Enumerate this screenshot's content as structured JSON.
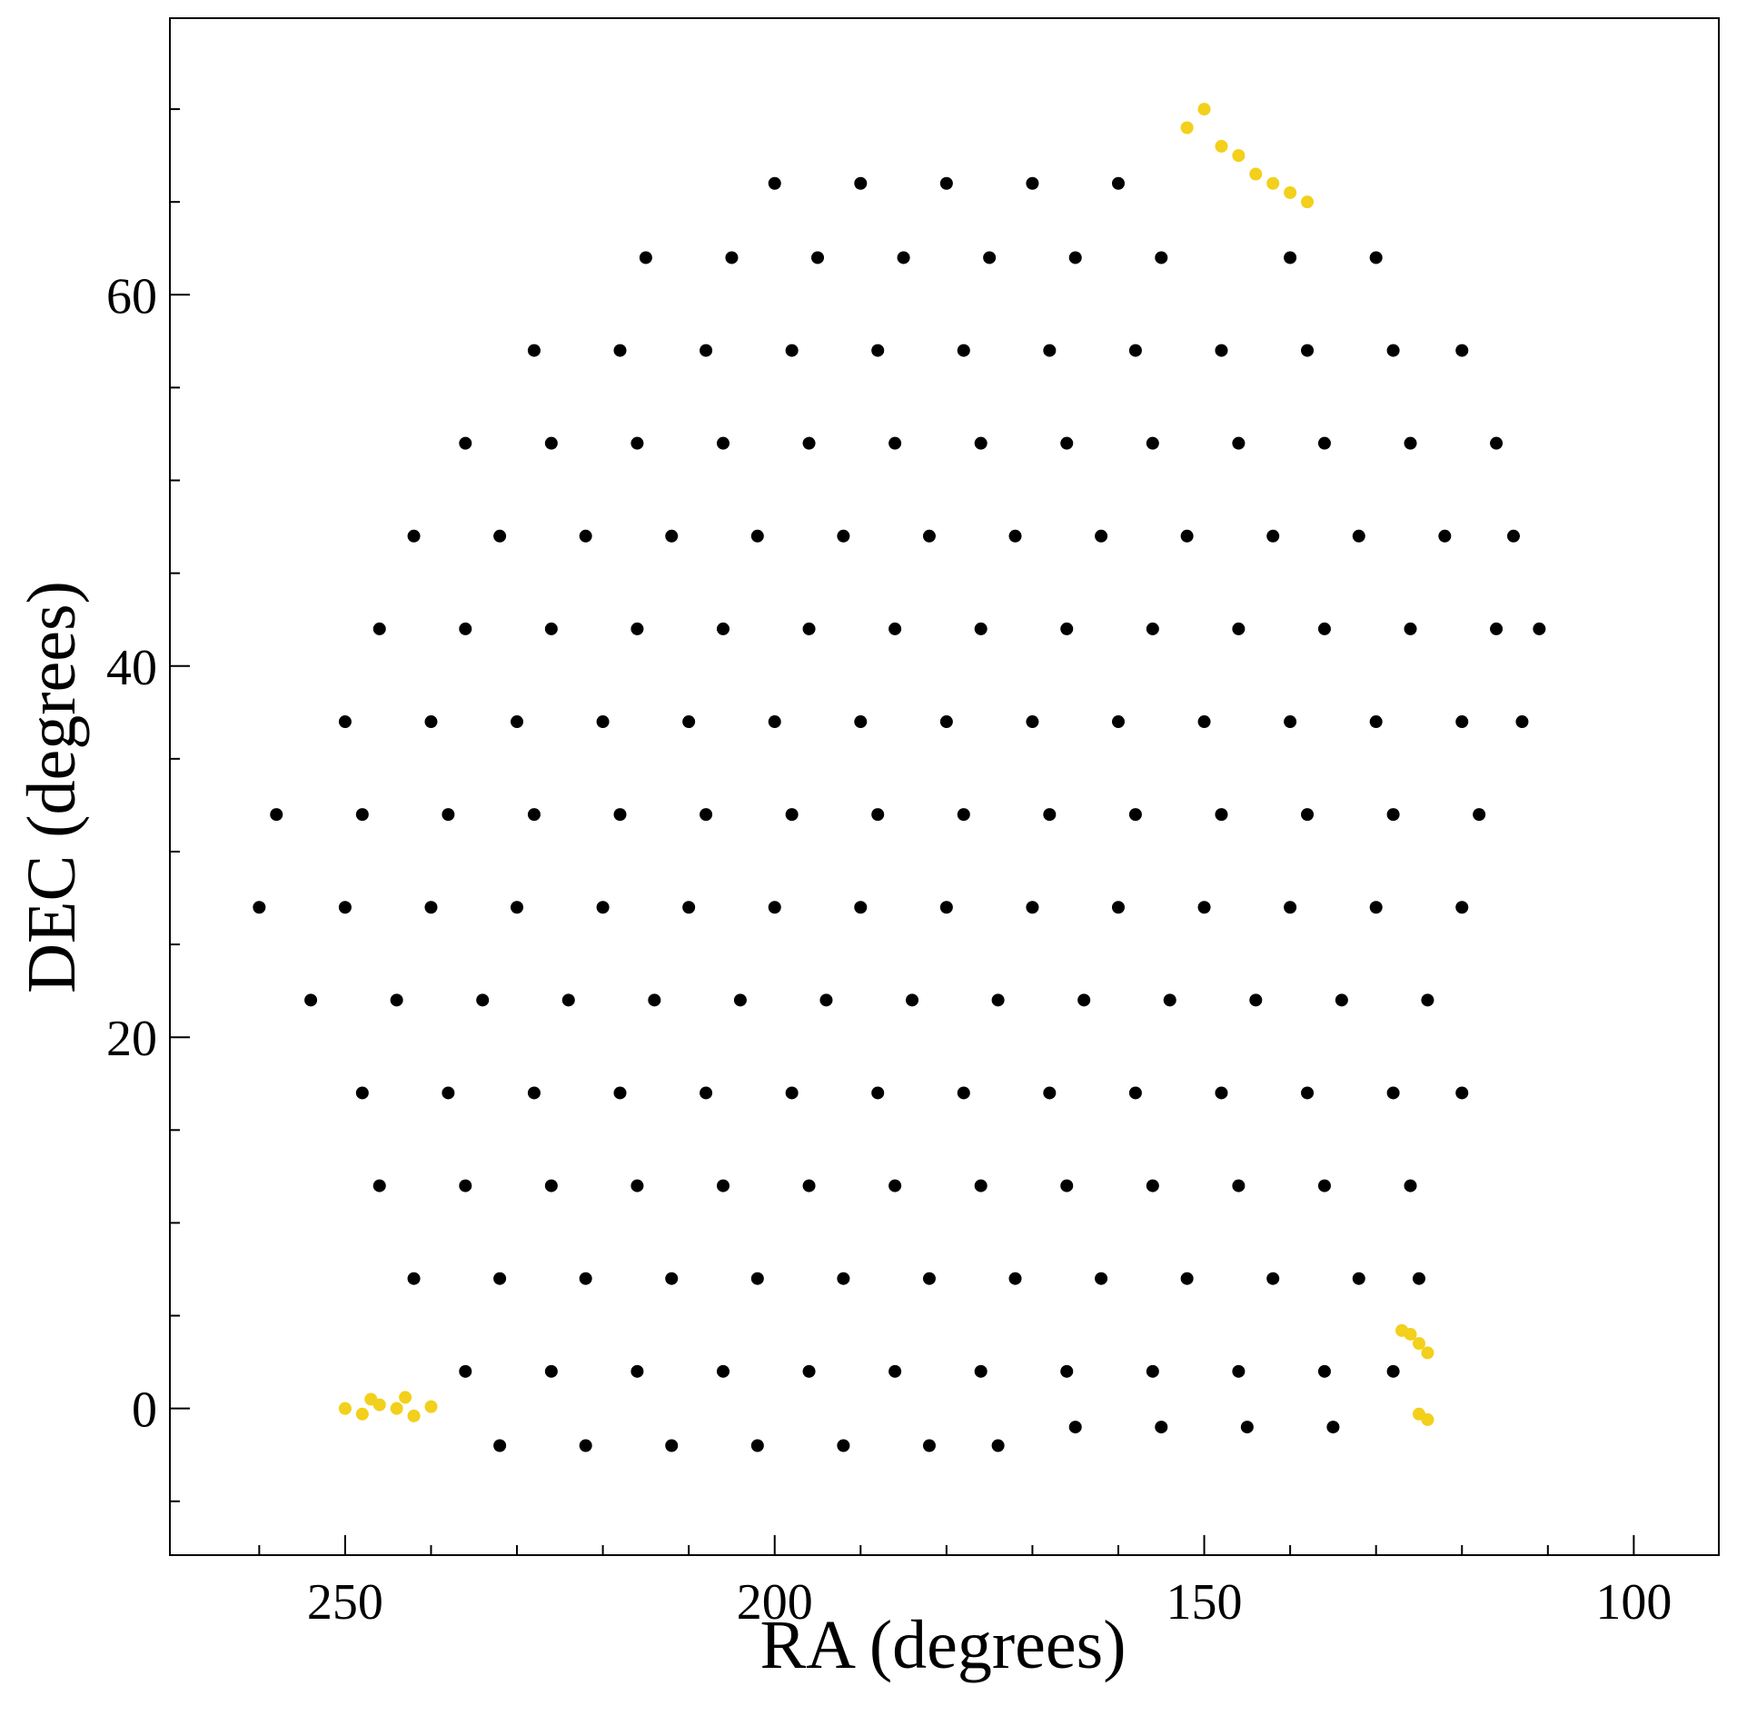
{
  "chart_data": {
    "type": "scatter",
    "xlabel": "RA (degrees)",
    "ylabel": "DEC (degrees)",
    "xlim": [
      270.4,
      90.1
    ],
    "ylim": [
      -7.9,
      74.9
    ],
    "xticks": [
      250,
      200,
      150,
      100
    ],
    "yticks": [
      0,
      20,
      40,
      60
    ],
    "xminorticks": [
      260,
      240,
      230,
      220,
      210,
      190,
      180,
      170,
      160,
      140,
      130,
      120,
      110
    ],
    "yminorticks": [
      -5,
      5,
      10,
      15,
      25,
      30,
      35,
      45,
      50,
      55,
      65,
      70
    ],
    "grid": false,
    "series": [
      {
        "color": "#000000",
        "x": [
          200,
          190,
          180,
          170,
          160,
          215,
          205,
          195,
          185,
          175,
          165,
          155,
          140,
          130,
          228,
          218,
          208,
          198,
          188,
          178,
          168,
          158,
          148,
          138,
          128,
          120,
          236,
          226,
          216,
          206,
          196,
          186,
          176,
          166,
          156,
          146,
          136,
          126,
          116,
          242,
          232,
          222,
          212,
          202,
          192,
          182,
          172,
          162,
          152,
          142,
          132,
          122,
          114,
          246,
          236,
          226,
          216,
          206,
          196,
          186,
          176,
          166,
          156,
          146,
          136,
          126,
          116,
          111,
          250,
          240,
          230,
          220,
          210,
          200,
          190,
          180,
          170,
          160,
          150,
          140,
          130,
          120,
          113,
          258,
          248,
          238,
          228,
          218,
          208,
          198,
          188,
          178,
          168,
          158,
          148,
          138,
          128,
          118,
          260,
          250,
          240,
          230,
          220,
          210,
          200,
          190,
          180,
          170,
          160,
          150,
          140,
          130,
          120,
          254,
          244,
          234,
          224,
          214,
          204,
          194,
          184,
          174,
          164,
          154,
          144,
          134,
          124,
          248,
          238,
          228,
          218,
          208,
          198,
          188,
          178,
          168,
          158,
          148,
          138,
          128,
          120,
          246,
          236,
          226,
          216,
          206,
          196,
          186,
          176,
          166,
          156,
          146,
          136,
          126,
          242,
          232,
          222,
          212,
          202,
          192,
          182,
          172,
          162,
          152,
          142,
          132,
          125,
          236,
          226,
          216,
          206,
          196,
          186,
          176,
          166,
          156,
          146,
          136,
          128,
          232,
          222,
          212,
          202,
          192,
          182,
          174,
          165,
          155,
          145,
          135
        ],
        "y": [
          66,
          66,
          66,
          66,
          66,
          62,
          62,
          62,
          62,
          62,
          62,
          62,
          62,
          62,
          57,
          57,
          57,
          57,
          57,
          57,
          57,
          57,
          57,
          57,
          57,
          57,
          52,
          52,
          52,
          52,
          52,
          52,
          52,
          52,
          52,
          52,
          52,
          52,
          52,
          47,
          47,
          47,
          47,
          47,
          47,
          47,
          47,
          47,
          47,
          47,
          47,
          47,
          47,
          42,
          42,
          42,
          42,
          42,
          42,
          42,
          42,
          42,
          42,
          42,
          42,
          42,
          42,
          42,
          37,
          37,
          37,
          37,
          37,
          37,
          37,
          37,
          37,
          37,
          37,
          37,
          37,
          37,
          37,
          32,
          32,
          32,
          32,
          32,
          32,
          32,
          32,
          32,
          32,
          32,
          32,
          32,
          32,
          32,
          27,
          27,
          27,
          27,
          27,
          27,
          27,
          27,
          27,
          27,
          27,
          27,
          27,
          27,
          27,
          22,
          22,
          22,
          22,
          22,
          22,
          22,
          22,
          22,
          22,
          22,
          22,
          22,
          22,
          17,
          17,
          17,
          17,
          17,
          17,
          17,
          17,
          17,
          17,
          17,
          17,
          17,
          17,
          12,
          12,
          12,
          12,
          12,
          12,
          12,
          12,
          12,
          12,
          12,
          12,
          12,
          7,
          7,
          7,
          7,
          7,
          7,
          7,
          7,
          7,
          7,
          7,
          7,
          7,
          2,
          2,
          2,
          2,
          2,
          2,
          2,
          2,
          2,
          2,
          2,
          2,
          -2,
          -2,
          -2,
          -2,
          -2,
          -2,
          -2,
          -1,
          -1,
          -1,
          -1
        ]
      },
      {
        "color": "#f2d01b",
        "x": [
          250,
          248,
          246,
          244,
          242,
          240,
          247,
          243,
          126,
          125,
          124,
          127,
          125,
          124,
          152,
          150,
          148,
          146,
          144,
          142,
          140,
          138
        ],
        "y": [
          0,
          -0.3,
          0.2,
          0,
          -0.4,
          0.1,
          0.5,
          0.6,
          4,
          3.5,
          3,
          4.2,
          -0.3,
          -0.6,
          69,
          70,
          68,
          67.5,
          66.5,
          66,
          65.5,
          65
        ]
      }
    ]
  }
}
